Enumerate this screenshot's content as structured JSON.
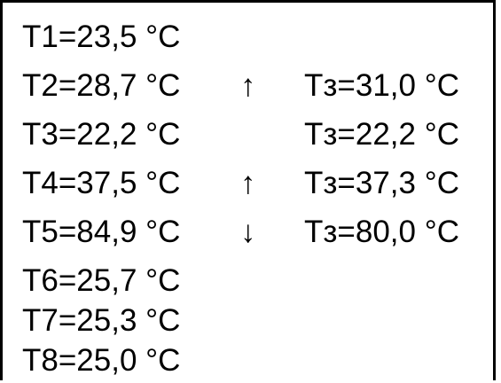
{
  "sensors": [
    {
      "reading": "T1=23,5 °C",
      "arrow": "",
      "setpoint": ""
    },
    {
      "reading": "T2=28,7 °C",
      "arrow": "↑",
      "setpoint": "Tз=31,0 °C"
    },
    {
      "reading": "T3=22,2 °C",
      "arrow": "",
      "setpoint": "Tз=22,2 °C"
    },
    {
      "reading": "T4=37,5 °C",
      "arrow": "↑",
      "setpoint": "Tз=37,3 °C"
    },
    {
      "reading": "T5=84,9 °C",
      "arrow": "↓",
      "setpoint": "Tз=80,0 °C"
    },
    {
      "reading": "T6=25,7 °C",
      "arrow": "",
      "setpoint": ""
    },
    {
      "reading": "T7=25,3 °C",
      "arrow": "",
      "setpoint": ""
    },
    {
      "reading": "T8=25,0 °C",
      "arrow": "",
      "setpoint": ""
    }
  ]
}
